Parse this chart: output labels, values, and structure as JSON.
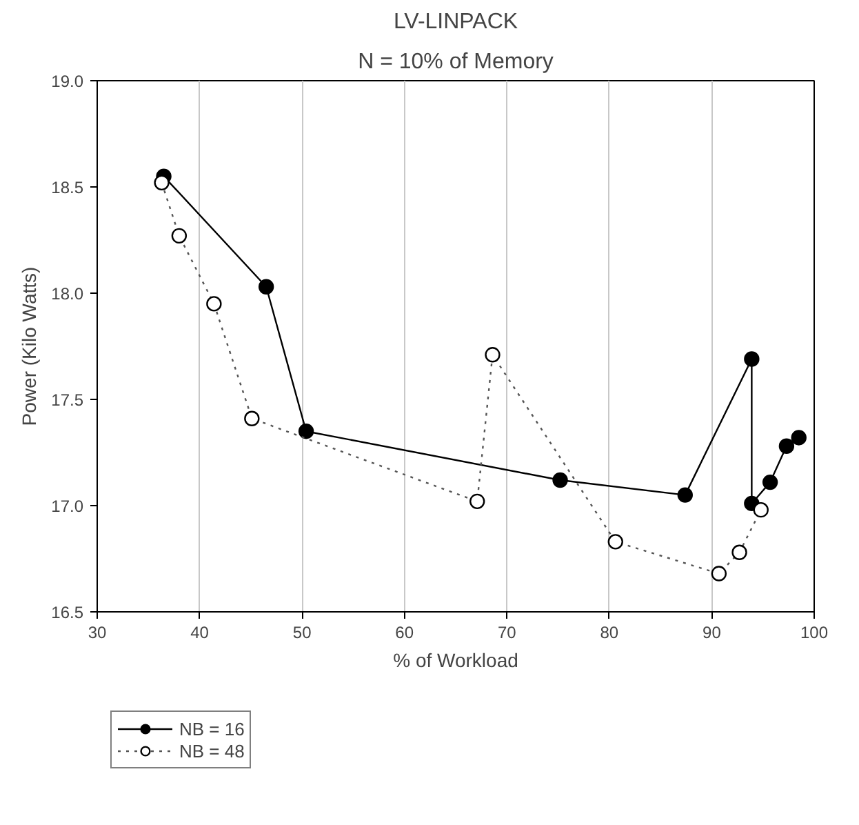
{
  "chart_data": {
    "type": "line",
    "title": "LV-LINPACK",
    "subtitle": "N = 10% of Memory",
    "xlabel": "% of Workload",
    "ylabel": "Power (Kilo Watts)",
    "xlim": [
      30,
      100
    ],
    "xticks": [
      30,
      40,
      50,
      60,
      70,
      80,
      90,
      100
    ],
    "ylim": [
      16.5,
      19.0
    ],
    "yticks": [
      {
        "value": 16.5,
        "label": "16.5"
      },
      {
        "value": 17.0,
        "label": "17.0"
      },
      {
        "value": 17.5,
        "label": "17.5"
      },
      {
        "value": 18.0,
        "label": "18.0"
      },
      {
        "value": 18.5,
        "label": "18.5"
      },
      {
        "value": 19.0,
        "label": "19.0"
      }
    ],
    "grid": "x",
    "legend": "bottom left",
    "series": [
      {
        "name": "NB = 16",
        "color": "#000000",
        "marker": "circle",
        "line_style": "solid",
        "x": [
          36.5,
          46.5,
          50.4,
          75.2,
          87.4,
          93.9,
          93.9,
          95.7,
          97.3,
          98.5
        ],
        "values": [
          18.55,
          18.03,
          17.35,
          17.12,
          17.05,
          17.69,
          17.01,
          17.11,
          17.28,
          17.32
        ]
      },
      {
        "name": "NB = 48",
        "color": "#000000",
        "marker": "circle",
        "line_style": "dotted",
        "x": [
          36.3,
          38.0,
          41.4,
          45.1,
          67.1,
          68.6,
          80.6,
          90.7,
          92.7,
          94.8
        ],
        "values": [
          18.52,
          18.27,
          17.95,
          17.41,
          17.02,
          17.71,
          16.83,
          16.68,
          16.78,
          16.98
        ]
      }
    ]
  }
}
